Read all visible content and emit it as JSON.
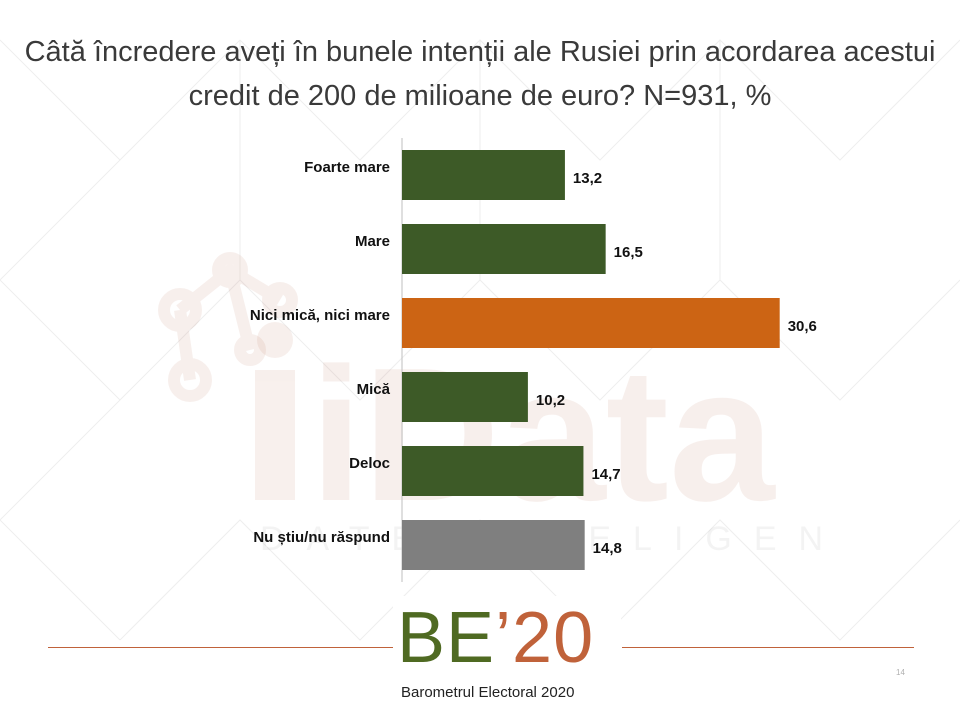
{
  "title": "Câtă încredere aveți în bunele intenții ale Rusiei prin acordarea acestui credit de 200 de milioane de euro? N=931, %",
  "chart_data": {
    "type": "bar",
    "orientation": "horizontal",
    "categories": [
      "Foarte mare",
      "Mare",
      "Nici mică, nici mare",
      "Mică",
      "Deloc",
      "Nu știu/nu răspund"
    ],
    "values": [
      13.2,
      16.5,
      30.6,
      10.2,
      14.7,
      14.8
    ],
    "value_labels": [
      "13,2",
      "16,5",
      "30,6",
      "10,2",
      "14,7",
      "14,8"
    ],
    "colors": [
      "#3d5a27",
      "#3d5a27",
      "#cc6414",
      "#3d5a27",
      "#3d5a27",
      "#7f7f7f"
    ],
    "xlim": [
      0,
      35
    ],
    "grid": false,
    "title": "Câtă încredere aveți în bunele intenții ale Rusiei prin acordarea acestui credit de 200 de milioane de euro? N=931, %"
  },
  "watermark": {
    "brand": "iData",
    "tagline": "DATE INTELIGENTE"
  },
  "logo": {
    "main_letters": "BE",
    "year": "’20",
    "subtitle": "Barometrul Electoral 2020"
  },
  "page_number": "14",
  "colors": {
    "accent_orange": "#cc6414",
    "green": "#3d5a27",
    "grey": "#7f7f7f",
    "rule": "#c0623a"
  }
}
